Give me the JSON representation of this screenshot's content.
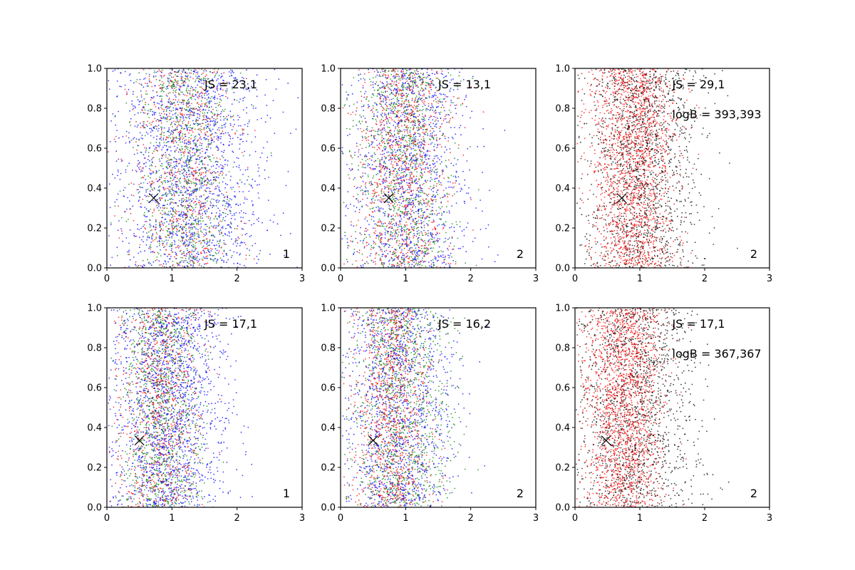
{
  "chart_data": [
    {
      "type": "scatter",
      "panel": "top-left",
      "xlim": [
        0,
        3
      ],
      "ylim": [
        0,
        1
      ],
      "xticks": [
        "0",
        "1",
        "2",
        "3"
      ],
      "yticks": [
        "0.0",
        "0.2",
        "0.4",
        "0.6",
        "0.8",
        "1.0"
      ],
      "annotations": {
        "js": "JS = 23,1",
        "corner": "1"
      },
      "marker": {
        "x": 0.72,
        "y": 0.35
      },
      "series": [
        {
          "color": "#0000ff",
          "count": 1700,
          "x_center": 1.3,
          "x_spread": 0.55
        },
        {
          "color": "#008000",
          "count": 900,
          "x_center": 1.2,
          "x_spread": 0.35
        },
        {
          "color": "#ff0000",
          "count": 700,
          "x_center": 1.15,
          "x_spread": 0.4
        }
      ]
    },
    {
      "type": "scatter",
      "panel": "top-middle",
      "xlim": [
        0,
        3
      ],
      "ylim": [
        0,
        1
      ],
      "xticks": [
        "0",
        "1",
        "2",
        "3"
      ],
      "yticks": [
        "0.0",
        "0.2",
        "0.4",
        "0.6",
        "0.8",
        "1.0"
      ],
      "annotations": {
        "js": "JS = 13,1",
        "corner": "2"
      },
      "marker": {
        "x": 0.74,
        "y": 0.35
      },
      "series": [
        {
          "color": "#0000ff",
          "count": 1300,
          "x_center": 1.05,
          "x_spread": 0.45
        },
        {
          "color": "#008000",
          "count": 1000,
          "x_center": 1.0,
          "x_spread": 0.38
        },
        {
          "color": "#ff0000",
          "count": 1000,
          "x_center": 0.95,
          "x_spread": 0.35
        }
      ]
    },
    {
      "type": "scatter",
      "panel": "top-right",
      "xlim": [
        0,
        3
      ],
      "ylim": [
        0,
        1
      ],
      "xticks": [
        "0",
        "1",
        "2",
        "3"
      ],
      "yticks": [
        "0.0",
        "0.2",
        "0.4",
        "0.6",
        "0.8",
        "1.0"
      ],
      "annotations": {
        "js": "JS = 29,1",
        "logb": "logB = 393,393",
        "corner": "2"
      },
      "marker": {
        "x": 0.72,
        "y": 0.35
      },
      "series": [
        {
          "color": "#000000",
          "count": 1500,
          "x_center": 1.05,
          "x_spread": 0.42
        },
        {
          "color": "#ff0000",
          "count": 1800,
          "x_center": 0.9,
          "x_spread": 0.32
        }
      ]
    },
    {
      "type": "scatter",
      "panel": "bottom-left",
      "xlim": [
        0,
        3
      ],
      "ylim": [
        0,
        1
      ],
      "xticks": [
        "0",
        "1",
        "2",
        "3"
      ],
      "yticks": [
        "0.0",
        "0.2",
        "0.4",
        "0.6",
        "0.8",
        "1.0"
      ],
      "annotations": {
        "js": "JS = 17,1",
        "corner": "1"
      },
      "marker": {
        "x": 0.5,
        "y": 0.335
      },
      "series": [
        {
          "color": "#0000ff",
          "count": 1700,
          "x_center": 0.95,
          "x_spread": 0.45
        },
        {
          "color": "#008000",
          "count": 1000,
          "x_center": 0.85,
          "x_spread": 0.32
        },
        {
          "color": "#ff0000",
          "count": 800,
          "x_center": 0.8,
          "x_spread": 0.32
        }
      ]
    },
    {
      "type": "scatter",
      "panel": "bottom-middle",
      "xlim": [
        0,
        3
      ],
      "ylim": [
        0,
        1
      ],
      "xticks": [
        "0",
        "1",
        "2",
        "3"
      ],
      "yticks": [
        "0.0",
        "0.2",
        "0.4",
        "0.6",
        "0.8",
        "1.0"
      ],
      "annotations": {
        "js": "JS = 16,2",
        "corner": "2"
      },
      "marker": {
        "x": 0.5,
        "y": 0.335
      },
      "series": [
        {
          "color": "#0000ff",
          "count": 1300,
          "x_center": 0.9,
          "x_spread": 0.4
        },
        {
          "color": "#008000",
          "count": 1100,
          "x_center": 0.95,
          "x_spread": 0.38
        },
        {
          "color": "#ff0000",
          "count": 1000,
          "x_center": 0.8,
          "x_spread": 0.3
        }
      ]
    },
    {
      "type": "scatter",
      "panel": "bottom-right",
      "xlim": [
        0,
        3
      ],
      "ylim": [
        0,
        1
      ],
      "xticks": [
        "0",
        "1",
        "2",
        "3"
      ],
      "yticks": [
        "0.0",
        "0.2",
        "0.4",
        "0.6",
        "0.8",
        "1.0"
      ],
      "annotations": {
        "js": "JS = 17,1",
        "logb": "logB = 367,367",
        "corner": "2"
      },
      "marker": {
        "x": 0.48,
        "y": 0.335
      },
      "series": [
        {
          "color": "#000000",
          "count": 1500,
          "x_center": 0.95,
          "x_spread": 0.45
        },
        {
          "color": "#ff0000",
          "count": 1800,
          "x_center": 0.75,
          "x_spread": 0.3
        }
      ]
    }
  ]
}
